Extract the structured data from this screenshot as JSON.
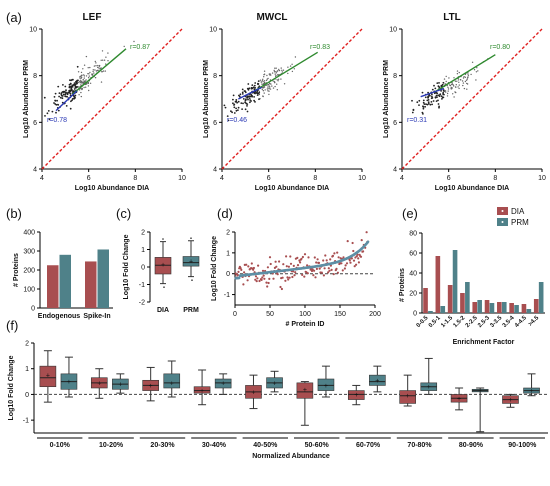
{
  "colors": {
    "dia": "#a84e50",
    "prm": "#4f8189",
    "low_fit": "#2b39b5",
    "high_fit": "#2f8a2f",
    "identity": "#e02020",
    "trend": "#5e8fa5"
  },
  "panel_labels": [
    "(a)",
    "(b)",
    "(c)",
    "(d)",
    "(e)",
    "(f)"
  ],
  "chart_data": [
    {
      "panel": "a",
      "type": "scatter",
      "title": "LEF",
      "xlabel": "Log10 Abundance DIA",
      "ylabel": "Log10 Abundance PRM",
      "xlim": [
        4,
        10
      ],
      "ylim": [
        4,
        10
      ],
      "xticks": [
        4,
        6,
        8,
        10
      ],
      "yticks": [
        4,
        6,
        8,
        10
      ],
      "annotations": [
        {
          "text": "r=0.87",
          "color": "high_fit"
        },
        {
          "text": "r=0.78",
          "color": "low_fit"
        }
      ],
      "cloud": {
        "center": [
          5.55,
          7.6
        ],
        "spread": [
          0.6,
          0.55
        ],
        "points": 260
      },
      "fit_low": [
        [
          4.6,
          6.5
        ],
        [
          5.5,
          7.35
        ]
      ],
      "fit_high": [
        [
          5.3,
          7.2
        ],
        [
          7.6,
          9.15
        ]
      ],
      "identity_line": [
        [
          4,
          4
        ],
        [
          10,
          10
        ]
      ]
    },
    {
      "panel": "a",
      "type": "scatter",
      "title": "MWCL",
      "xlabel": "Log10 Abundance DIA",
      "ylabel": "Log10 Abundance PRM",
      "xlim": [
        4,
        10
      ],
      "ylim": [
        4,
        10
      ],
      "xticks": [
        4,
        6,
        8,
        10
      ],
      "yticks": [
        4,
        6,
        8,
        10
      ],
      "annotations": [
        {
          "text": "r=0.83",
          "color": "high_fit"
        },
        {
          "text": "r=0.46",
          "color": "low_fit"
        }
      ],
      "cloud": {
        "center": [
          5.6,
          7.45
        ],
        "spread": [
          0.65,
          0.5
        ],
        "points": 230
      },
      "fit_low": [
        [
          4.7,
          7.0
        ],
        [
          5.7,
          7.5
        ]
      ],
      "fit_high": [
        [
          5.4,
          7.35
        ],
        [
          8.1,
          9.0
        ]
      ],
      "identity_line": [
        [
          4,
          4
        ],
        [
          10,
          10
        ]
      ]
    },
    {
      "panel": "a",
      "type": "scatter",
      "title": "LTL",
      "xlabel": "Log10 Abundance DIA",
      "ylabel": "Log10 Abundance PRM",
      "xlim": [
        4,
        10
      ],
      "ylim": [
        4,
        10
      ],
      "xticks": [
        4,
        6,
        8,
        10
      ],
      "yticks": [
        4,
        6,
        8,
        10
      ],
      "annotations": [
        {
          "text": "r=0.80",
          "color": "high_fit"
        },
        {
          "text": "r=0.31",
          "color": "low_fit"
        }
      ],
      "cloud": {
        "center": [
          5.8,
          7.35
        ],
        "spread": [
          0.65,
          0.45
        ],
        "points": 170
      },
      "fit_low": [
        [
          4.8,
          7.1
        ],
        [
          5.8,
          7.45
        ]
      ],
      "fit_high": [
        [
          5.4,
          7.3
        ],
        [
          8.0,
          8.9
        ]
      ],
      "identity_line": [
        [
          4,
          4
        ],
        [
          10,
          10
        ]
      ]
    },
    {
      "panel": "b",
      "type": "bar",
      "ylabel": "# Proteins",
      "categories": [
        "Endogenous",
        "Spike-In"
      ],
      "ylim": [
        0,
        400
      ],
      "yticks": [
        0,
        100,
        200,
        300,
        400
      ],
      "series": [
        {
          "name": "DIA",
          "values": [
            225,
            245
          ]
        },
        {
          "name": "PRM",
          "values": [
            280,
            308
          ]
        }
      ]
    },
    {
      "panel": "c",
      "type": "box",
      "ylabel": "Log10 Fold Change",
      "categories": [
        "DIA",
        "PRM"
      ],
      "ylim": [
        -2,
        2
      ],
      "yticks": [
        -2,
        -1,
        0,
        1,
        2
      ],
      "boxes": [
        {
          "name": "DIA",
          "whisker_low": -0.95,
          "q1": -0.4,
          "median": 0.1,
          "q3": 0.55,
          "whisker_high": 1.45,
          "mean": 0.15
        },
        {
          "name": "PRM",
          "whisker_low": -0.55,
          "q1": 0.05,
          "median": 0.25,
          "q3": 0.6,
          "whisker_high": 1.5,
          "mean": 0.35
        }
      ]
    },
    {
      "panel": "d",
      "type": "scatter",
      "xlabel": "# Protein ID",
      "ylabel": "Log10 Fold Change",
      "xlim": [
        0,
        200
      ],
      "ylim": [
        -1.5,
        2
      ],
      "xticks": [
        0,
        50,
        100,
        150,
        200
      ],
      "yticks": [
        -1,
        0,
        1,
        2
      ],
      "points_per_series": 190,
      "series": [
        {
          "name": "DIA",
          "noise": 0.3
        },
        {
          "name": "PRM",
          "sorted": true
        }
      ],
      "reference_line": 0
    },
    {
      "panel": "e",
      "type": "bar",
      "xlabel": "Enrichment Factor",
      "ylabel": "# Proteins",
      "categories": [
        "0-0.5",
        "0.5-1",
        "1-1.5",
        "1.5-2",
        "2-2.5",
        "2.5-3",
        "3-3.5",
        "3.5-4",
        "4-4.5",
        ">4.5"
      ],
      "ylim": [
        0,
        80
      ],
      "yticks": [
        0,
        20,
        40,
        60,
        80
      ],
      "series": [
        {
          "name": "DIA",
          "values": [
            25,
            57,
            28,
            20,
            11,
            13,
            11,
            10,
            9,
            14
          ]
        },
        {
          "name": "PRM",
          "values": [
            2,
            7,
            63,
            31,
            13,
            10,
            11,
            8,
            4,
            31
          ]
        }
      ],
      "legend": {
        "entries": [
          "DIA",
          "PRM"
        ],
        "position": "top-right"
      }
    },
    {
      "panel": "f",
      "type": "box",
      "xlabel": "Normalized Abundance",
      "ylabel": "Log10 Fold Change",
      "ylim": [
        -1.5,
        2
      ],
      "yticks": [
        -1,
        0,
        1,
        2
      ],
      "categories": [
        "0-10%",
        "10-20%",
        "20-30%",
        "30-40%",
        "40-50%",
        "50-60%",
        "60-70%",
        "70-80%",
        "80-90%",
        "90-100%"
      ],
      "series": [
        {
          "name": "DIA",
          "boxes": [
            {
              "wl": -0.3,
              "q1": 0.3,
              "med": 0.65,
              "q3": 1.1,
              "wh": 1.7,
              "mean": 0.75
            },
            {
              "wl": -0.15,
              "q1": 0.25,
              "med": 0.45,
              "q3": 0.65,
              "wh": 1.0,
              "mean": 0.45
            },
            {
              "wl": -0.25,
              "q1": 0.15,
              "med": 0.35,
              "q3": 0.55,
              "wh": 1.05,
              "mean": 0.35
            },
            {
              "wl": -0.4,
              "q1": 0.05,
              "med": 0.15,
              "q3": 0.3,
              "wh": 0.95,
              "mean": 0.15
            },
            {
              "wl": -0.55,
              "q1": -0.15,
              "med": 0.1,
              "q3": 0.35,
              "wh": 0.75,
              "mean": 0.1
            },
            {
              "wl": -1.2,
              "q1": -0.15,
              "med": 0.1,
              "q3": 0.45,
              "wh": 0.5,
              "mean": 0.2
            },
            {
              "wl": -0.4,
              "q1": -0.2,
              "med": 0.0,
              "q3": 0.15,
              "wh": 0.35,
              "mean": 0.0
            },
            {
              "wl": -0.45,
              "q1": -0.35,
              "med": -0.05,
              "q3": 0.15,
              "wh": 0.75,
              "mean": -0.05
            },
            {
              "wl": -0.6,
              "q1": -0.3,
              "med": -0.15,
              "q3": 0.0,
              "wh": 0.25,
              "mean": -0.15
            },
            {
              "wl": -0.5,
              "q1": -0.35,
              "med": -0.2,
              "q3": -0.05,
              "wh": 0.0,
              "mean": -0.2
            }
          ]
        },
        {
          "name": "PRM",
          "boxes": [
            {
              "wl": -0.1,
              "q1": 0.2,
              "med": 0.5,
              "q3": 0.8,
              "wh": 1.45,
              "mean": 0.5
            },
            {
              "wl": 0.05,
              "q1": 0.2,
              "med": 0.4,
              "q3": 0.6,
              "wh": 0.8,
              "mean": 0.4
            },
            {
              "wl": -0.1,
              "q1": 0.25,
              "med": 0.45,
              "q3": 0.8,
              "wh": 1.3,
              "mean": 0.45
            },
            {
              "wl": 0.0,
              "q1": 0.25,
              "med": 0.45,
              "q3": 0.6,
              "wh": 0.8,
              "mean": 0.45
            },
            {
              "wl": 0.1,
              "q1": 0.25,
              "med": 0.45,
              "q3": 0.65,
              "wh": 0.9,
              "mean": 0.45
            },
            {
              "wl": -0.1,
              "q1": 0.15,
              "med": 0.35,
              "q3": 0.6,
              "wh": 1.1,
              "mean": 0.35
            },
            {
              "wl": 0.1,
              "q1": 0.35,
              "med": 0.5,
              "q3": 0.75,
              "wh": 1.1,
              "mean": 0.55
            },
            {
              "wl": 0.0,
              "q1": 0.15,
              "med": 0.3,
              "q3": 0.45,
              "wh": 1.4,
              "mean": 0.3
            },
            {
              "wl": -1.45,
              "q1": 0.1,
              "med": 0.15,
              "q3": 0.2,
              "wh": 0.25,
              "mean": 0.15
            },
            {
              "wl": -0.05,
              "q1": 0.05,
              "med": 0.15,
              "q3": 0.25,
              "wh": 0.8,
              "mean": 0.15
            }
          ]
        }
      ],
      "reference_line": 0
    }
  ]
}
